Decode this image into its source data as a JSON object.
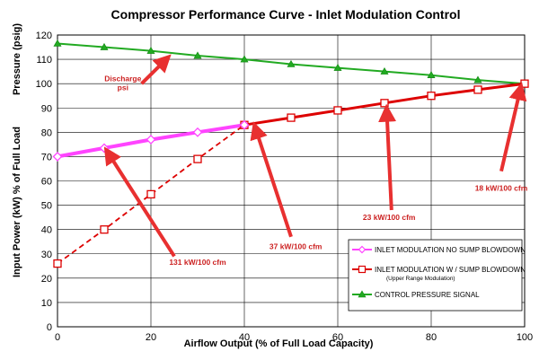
{
  "chart_data": {
    "type": "line",
    "title": "Compressor Performance Curve - Inlet Modulation Control",
    "xlabel": "Airflow Output (% of Full Load Capacity)",
    "ylabel_top": "Pressure (psig)",
    "ylabel_bottom": "Input Power (kW) % of Full Load",
    "xlim": [
      0,
      100
    ],
    "ylim": [
      0,
      120
    ],
    "x_ticks": [
      "0",
      "20",
      "40",
      "60",
      "80",
      "100"
    ],
    "y_ticks": [
      "0",
      "10",
      "20",
      "30",
      "40",
      "50",
      "60",
      "70",
      "80",
      "90",
      "100",
      "110",
      "120"
    ],
    "grid": true,
    "legend_position": "bottom-right",
    "series": [
      {
        "name": "INLET MODULATION NO SUMP BLOWDOWN",
        "note": "",
        "color": "#ff44ff",
        "marker": "diamond",
        "x": [
          0,
          10,
          20,
          30,
          40,
          50,
          60,
          70,
          80,
          90,
          100
        ],
        "y": [
          70,
          73.5,
          77,
          80,
          83,
          86,
          89,
          92,
          95,
          97.5,
          100
        ]
      },
      {
        "name": "INLET MODULATION W / SUMP BLOWDOWN",
        "note": "(Upper Range Modulation)",
        "color": "#dd0000",
        "marker": "square",
        "x": [
          0,
          10,
          20,
          30,
          40,
          50,
          60,
          70,
          80,
          90,
          100
        ],
        "y": [
          26,
          40,
          54.5,
          69,
          83,
          86,
          89,
          92,
          95,
          97.5,
          100
        ]
      },
      {
        "name": "CONTROL PRESSURE SIGNAL",
        "note": "",
        "color": "#22aa22",
        "marker": "triangle",
        "x": [
          0,
          10,
          20,
          30,
          40,
          50,
          60,
          70,
          80,
          90,
          100
        ],
        "y": [
          116.5,
          115,
          113.5,
          111.5,
          110,
          108,
          106.5,
          105,
          103.5,
          101.5,
          100
        ]
      }
    ],
    "annotations": [
      {
        "text": "Discharge",
        "text2": "psi",
        "tx": 14,
        "ty": 101,
        "ax": 18,
        "ay": 100,
        "hx": 23,
        "hy": 109.5
      },
      {
        "text": "131 kW/100 cfm",
        "tx": 30,
        "ty": 25.5,
        "ax": 25,
        "ay": 29,
        "hx": 11,
        "hy": 71
      },
      {
        "text": "37 kW/100 cfm",
        "tx": 51,
        "ty": 32,
        "ax": 50,
        "ay": 37,
        "hx": 42.5,
        "hy": 81
      },
      {
        "text": "23 kW/100 cfm",
        "tx": 71,
        "ty": 44,
        "ax": 71.5,
        "ay": 48,
        "hx": 70.5,
        "hy": 88
      },
      {
        "text": "18 kW/100 cfm",
        "tx": 95,
        "ty": 56,
        "ax": 95,
        "ay": 64,
        "hx": 99,
        "hy": 97
      }
    ]
  }
}
